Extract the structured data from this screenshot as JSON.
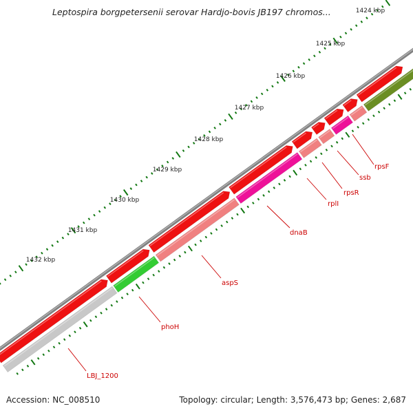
{
  "title": "Leptospira borgpetersenii serovar Hardjo-bovis JB197 chromos...",
  "footer": {
    "accession": "Accession: NC_008510",
    "summary": "Topology: circular; Length: 3,576,473 bp; Genes: 2,687"
  },
  "colors": {
    "background": "#ffffff",
    "backbone": "#808080",
    "cds_red": "#ee1111",
    "gene_pink": "#f08080",
    "gene_magenta": "#ee1199",
    "gene_green": "#33cc33",
    "gene_olive": "#6b8e23",
    "gene_gray": "#c8c8c8",
    "tick_green": "#117711",
    "label_red": "#cc0000",
    "kbp_text": "#222222"
  },
  "ruler": {
    "labels": [
      "1424 kbp",
      "1425 kbp",
      "1426 kbp",
      "1427 kbp",
      "1428 kbp",
      "1429 kbp",
      "1430 kbp",
      "1431 kbp",
      "1432 kbp"
    ]
  },
  "gene_labels": [
    {
      "name": "rpsF"
    },
    {
      "name": "ssb"
    },
    {
      "name": "rpsR"
    },
    {
      "name": "rplI"
    },
    {
      "name": "dnaB"
    },
    {
      "name": "aspS"
    },
    {
      "name": "phoH"
    },
    {
      "name": "LBJ_1200"
    }
  ]
}
